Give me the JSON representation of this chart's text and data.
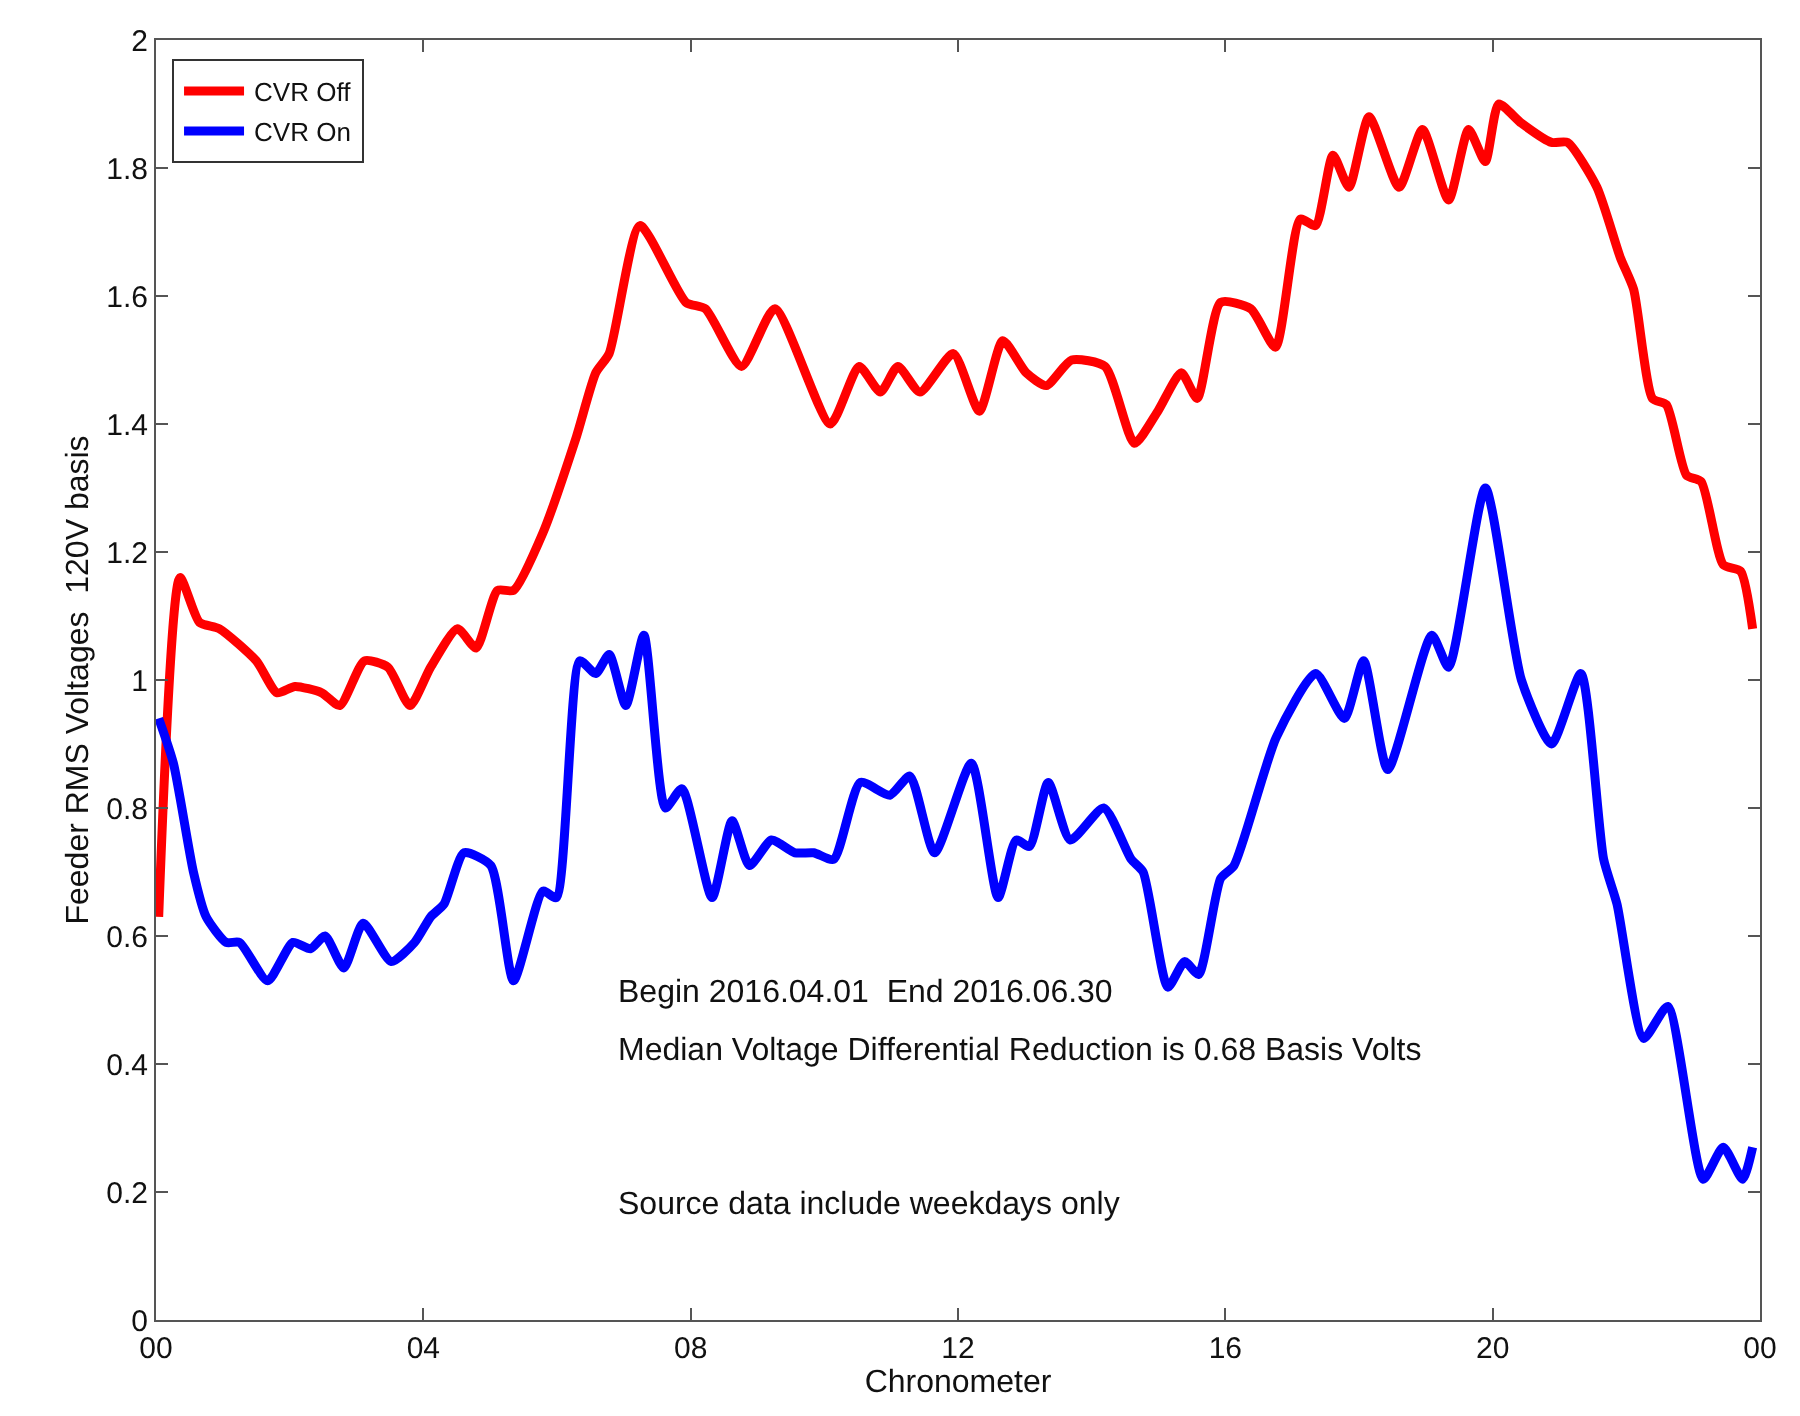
{
  "chart_data": {
    "type": "line",
    "xlabel": "Chronometer",
    "ylabel": "Feeder RMS Voltages  120V basis",
    "xlim": [
      0,
      24
    ],
    "xticks": [
      {
        "value": 0,
        "label": "00"
      },
      {
        "value": 4,
        "label": "04"
      },
      {
        "value": 8,
        "label": "08"
      },
      {
        "value": 12,
        "label": "12"
      },
      {
        "value": 16,
        "label": "16"
      },
      {
        "value": 20,
        "label": "20"
      },
      {
        "value": 24,
        "label": "00"
      }
    ],
    "ylim": [
      0,
      2
    ],
    "yticks": [
      0,
      0.2,
      0.4,
      0.6,
      0.8,
      1,
      1.2,
      1.4,
      1.6,
      1.8,
      2
    ],
    "grid": false,
    "legend": "top left",
    "marker": "none",
    "line_style": "solid",
    "annotations": [
      "Begin 2016.04.01  End 2016.06.30",
      "Median Voltage Differential Reduction is 0.68 Basis Volts",
      "Source data include weekdays only"
    ],
    "series": [
      {
        "name": "CVR Off",
        "color": "#ff0000",
        "x": [
          0.04,
          0.36,
          0.65,
          0.95,
          1.5,
          1.81,
          2.08,
          2.48,
          2.75,
          3.12,
          3.47,
          3.8,
          4.11,
          4.51,
          4.79,
          5.11,
          5.35,
          5.79,
          6.29,
          6.58,
          6.78,
          7.24,
          7.93,
          8.22,
          8.76,
          9.26,
          10.09,
          10.52,
          10.84,
          11.1,
          11.43,
          11.93,
          12.32,
          12.67,
          13.02,
          13.32,
          13.7,
          14.2,
          14.64,
          14.99,
          15.34,
          15.58,
          15.93,
          16.38,
          16.75,
          17.12,
          17.35,
          17.61,
          17.85,
          18.15,
          18.6,
          18.95,
          19.34,
          19.64,
          19.89,
          20.09,
          20.43,
          20.88,
          21.12,
          21.56,
          21.91,
          22.11,
          22.39,
          22.6,
          22.9,
          23.12,
          23.45,
          23.71,
          23.89
        ],
        "values": [
          0.63,
          1.16,
          1.09,
          1.08,
          1.03,
          0.98,
          0.99,
          0.98,
          0.96,
          1.03,
          1.02,
          0.96,
          1.02,
          1.08,
          1.05,
          1.14,
          1.14,
          1.23,
          1.38,
          1.48,
          1.51,
          1.71,
          1.59,
          1.58,
          1.49,
          1.58,
          1.4,
          1.49,
          1.45,
          1.49,
          1.45,
          1.51,
          1.42,
          1.53,
          1.48,
          1.46,
          1.5,
          1.49,
          1.37,
          1.42,
          1.48,
          1.44,
          1.59,
          1.58,
          1.52,
          1.72,
          1.71,
          1.82,
          1.77,
          1.88,
          1.77,
          1.86,
          1.75,
          1.86,
          1.81,
          1.9,
          1.87,
          1.84,
          1.84,
          1.77,
          1.66,
          1.61,
          1.44,
          1.43,
          1.32,
          1.31,
          1.18,
          1.17,
          1.08
        ]
      },
      {
        "name": "CVR On",
        "color": "#0000ff",
        "x": [
          0.04,
          0.26,
          0.56,
          0.75,
          1.05,
          1.25,
          1.67,
          2.05,
          2.31,
          2.53,
          2.81,
          3.1,
          3.52,
          3.87,
          4.11,
          4.31,
          4.61,
          5.01,
          5.35,
          5.79,
          5.99,
          6.34,
          6.58,
          6.78,
          7.03,
          7.3,
          7.62,
          7.87,
          8.32,
          8.62,
          8.88,
          9.21,
          9.56,
          9.84,
          10.14,
          10.54,
          10.98,
          11.28,
          11.65,
          12.2,
          12.6,
          12.87,
          13.07,
          13.35,
          13.68,
          14.18,
          14.59,
          14.77,
          15.14,
          15.39,
          15.6,
          15.93,
          16.13,
          16.76,
          17.35,
          17.78,
          18.07,
          18.43,
          19.09,
          19.34,
          19.89,
          20.43,
          20.88,
          21.32,
          21.66,
          21.86,
          22.26,
          22.62,
          23.15,
          23.45,
          23.74,
          23.89
        ],
        "values": [
          0.94,
          0.87,
          0.7,
          0.63,
          0.59,
          0.59,
          0.53,
          0.59,
          0.58,
          0.6,
          0.55,
          0.62,
          0.56,
          0.59,
          0.63,
          0.65,
          0.73,
          0.71,
          0.53,
          0.67,
          0.66,
          1.03,
          1.01,
          1.04,
          0.96,
          1.07,
          0.8,
          0.83,
          0.66,
          0.78,
          0.71,
          0.75,
          0.73,
          0.73,
          0.72,
          0.84,
          0.82,
          0.85,
          0.73,
          0.87,
          0.66,
          0.75,
          0.74,
          0.84,
          0.75,
          0.8,
          0.72,
          0.7,
          0.52,
          0.56,
          0.54,
          0.69,
          0.71,
          0.91,
          1.01,
          0.94,
          1.03,
          0.86,
          1.07,
          1.02,
          1.3,
          1.0,
          0.9,
          1.01,
          0.72,
          0.65,
          0.44,
          0.49,
          0.22,
          0.27,
          0.22,
          0.27
        ]
      }
    ]
  }
}
